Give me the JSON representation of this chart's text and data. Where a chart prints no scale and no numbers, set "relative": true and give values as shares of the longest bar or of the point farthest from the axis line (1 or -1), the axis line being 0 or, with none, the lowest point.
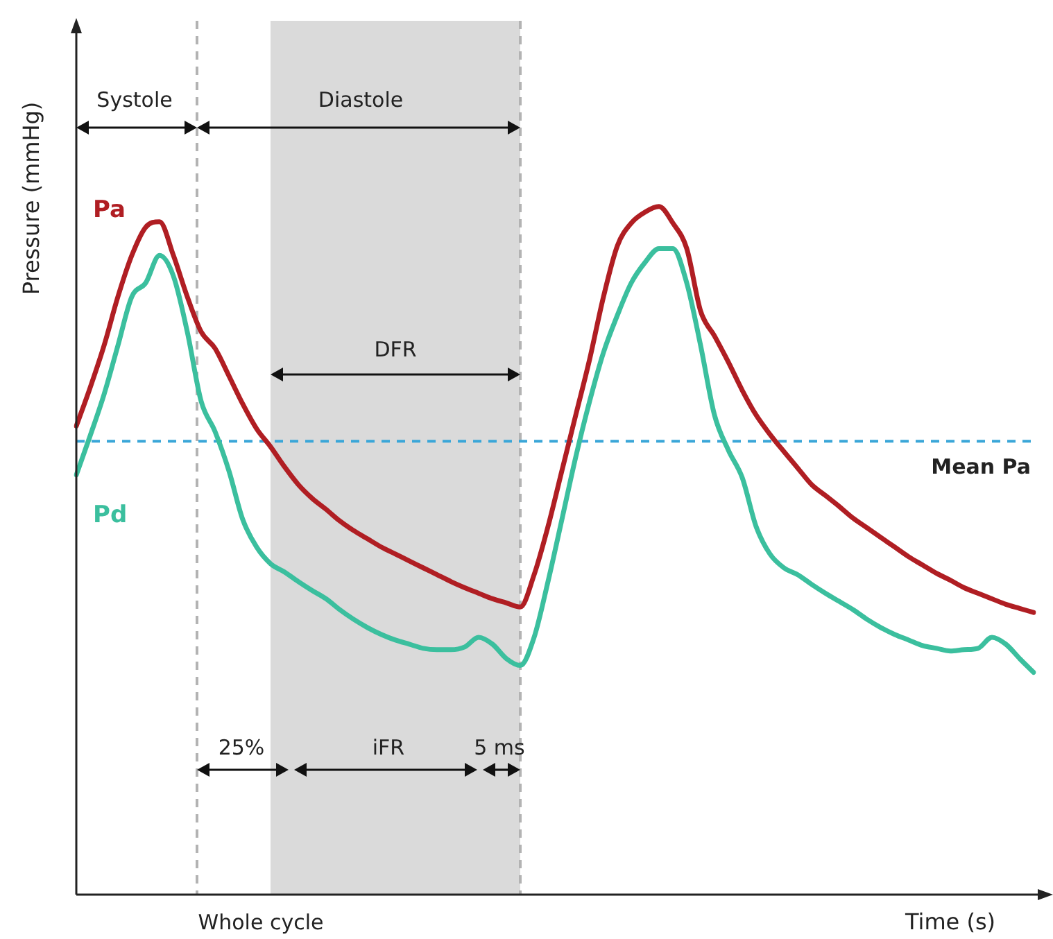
{
  "chart_data": {
    "type": "line",
    "relative": true,
    "xlabel": "Time (s)",
    "ylabel": "Pressure (mmHg)",
    "legend": false,
    "marker": "none",
    "line_style": "solid",
    "categories": [
      null,
      null,
      null,
      null,
      null,
      null,
      null,
      null,
      null,
      null,
      null,
      null,
      null,
      null,
      null,
      null,
      null,
      null,
      null,
      null,
      null,
      null,
      null,
      null,
      null,
      null,
      null,
      null,
      null,
      null,
      null,
      null,
      null,
      null,
      null,
      null,
      null,
      null,
      null,
      null,
      null,
      null,
      null,
      null,
      null,
      null,
      null,
      null,
      null,
      null,
      null,
      null,
      null,
      null,
      null,
      null,
      null,
      null,
      null,
      null,
      null,
      null,
      null,
      null,
      null,
      null,
      null,
      null,
      null,
      null
    ],
    "series": [
      {
        "name": "Pa",
        "color": "#b01e23",
        "values": [
          0.681,
          0.737,
          0.798,
          0.869,
          0.929,
          0.97,
          0.978,
          0.929,
          0.869,
          0.818,
          0.794,
          0.754,
          0.713,
          0.677,
          0.651,
          0.622,
          0.596,
          0.576,
          0.56,
          0.543,
          0.529,
          0.517,
          0.505,
          0.495,
          0.485,
          0.475,
          0.465,
          0.455,
          0.446,
          0.438,
          0.43,
          0.424,
          0.418,
          0.465,
          0.535,
          0.616,
          0.697,
          0.778,
          0.869,
          0.943,
          0.976,
          0.992,
          1,
          0.976,
          0.939,
          0.848,
          0.812,
          0.774,
          0.733,
          0.697,
          0.669,
          0.644,
          0.62,
          0.596,
          0.58,
          0.564,
          0.547,
          0.533,
          0.519,
          0.505,
          0.491,
          0.479,
          0.467,
          0.457,
          0.446,
          0.438,
          0.43,
          0.422,
          0.416,
          0.41
        ]
      },
      {
        "name": "Pd",
        "color": "#3bbf9e",
        "values": [
          0.61,
          0.667,
          0.727,
          0.798,
          0.869,
          0.889,
          0.929,
          0.899,
          0.818,
          0.717,
          0.673,
          0.616,
          0.545,
          0.505,
          0.481,
          0.469,
          0.455,
          0.442,
          0.43,
          0.414,
          0.4,
          0.388,
          0.378,
          0.37,
          0.364,
          0.358,
          0.356,
          0.356,
          0.36,
          0.374,
          0.364,
          0.343,
          0.333,
          0.374,
          0.455,
          0.545,
          0.636,
          0.717,
          0.788,
          0.842,
          0.889,
          0.919,
          0.939,
          0.939,
          0.889,
          0.798,
          0.697,
          0.646,
          0.606,
          0.535,
          0.495,
          0.475,
          0.465,
          0.451,
          0.438,
          0.426,
          0.414,
          0.4,
          0.388,
          0.378,
          0.37,
          0.362,
          0.358,
          0.354,
          0.356,
          0.358,
          0.374,
          0.364,
          0.343,
          0.323
        ]
      }
    ],
    "ref_lines": [
      {
        "axis": "y",
        "value": 0.659,
        "label": "Mean Pa",
        "color": "#3aa6d8",
        "line_style": "dashed"
      }
    ],
    "annotations": [
      "Systole",
      "Diastole",
      "DFR",
      "25%",
      "iFR",
      "5 ms",
      "Whole cycle"
    ]
  }
}
